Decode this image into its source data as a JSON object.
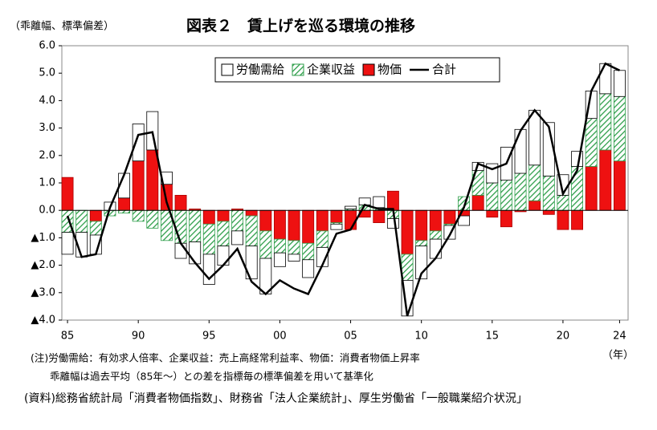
{
  "chart_data": {
    "type": "bar",
    "title": "図表２　賃上げを巡る環境の推移",
    "y_label": "（乖離幅、標準偏差）",
    "x_label": "（年）",
    "notes": [
      "(注)労働需給：有効求人倍率、企業収益：売上高経常利益率、物価：消費者物価上昇率",
      "乖離幅は過去平均（85年～）との差を指標毎の標準偏差を用いて基準化"
    ],
    "source": "(資料)総務省統計局「消費者物価指数」、財務省「法人企業統計」、厚生労働省「一般職業紹介状況」",
    "x": [
      1985,
      1986,
      1987,
      1988,
      1989,
      1990,
      1991,
      1992,
      1993,
      1994,
      1995,
      1996,
      1997,
      1998,
      1999,
      2000,
      2001,
      2002,
      2003,
      2004,
      2005,
      2006,
      2007,
      2008,
      2009,
      2010,
      2011,
      2012,
      2013,
      2014,
      2015,
      2016,
      2017,
      2018,
      2019,
      2020,
      2021,
      2022,
      2023,
      2024
    ],
    "series": [
      {
        "name": "労働需給",
        "color": "#ffffff",
        "type": "bar",
        "values": [
          -0.8,
          -0.9,
          -0.7,
          0.3,
          0.9,
          1.35,
          1.4,
          0.45,
          -0.55,
          -0.8,
          -1.1,
          -0.7,
          -0.5,
          -1.2,
          -1.3,
          -0.5,
          -0.25,
          -0.65,
          -0.7,
          -0.2,
          0.1,
          0.25,
          0.4,
          -0.35,
          -1.3,
          -1.2,
          -0.7,
          -0.5,
          -0.35,
          0.3,
          0.7,
          1.2,
          1.6,
          2.0,
          1.95,
          0.75,
          0.55,
          1.0,
          1.1,
          0.95
        ]
      },
      {
        "name": "企業収益",
        "color": "#2e9e4a",
        "type": "bar",
        "hatch": true,
        "values": [
          -0.8,
          -0.8,
          -0.5,
          -0.2,
          -0.1,
          -0.4,
          -0.65,
          -1.1,
          -1.2,
          -1.15,
          -1.1,
          -0.9,
          -0.75,
          -1.1,
          -1.0,
          -0.5,
          -0.5,
          -0.6,
          -0.6,
          -0.05,
          0.05,
          0.2,
          0.1,
          -0.3,
          -0.95,
          -0.2,
          -0.3,
          -0.05,
          0.5,
          0.9,
          1.0,
          1.1,
          1.35,
          1.3,
          1.25,
          0.55,
          1.6,
          1.75,
          2.05,
          2.35
        ]
      },
      {
        "name": "物価",
        "color": "#ee1111",
        "type": "bar",
        "values": [
          1.2,
          0.0,
          -0.4,
          0.0,
          0.45,
          1.8,
          2.2,
          0.95,
          0.55,
          0.05,
          -0.5,
          -0.4,
          0.05,
          -0.2,
          -0.75,
          -1.05,
          -1.1,
          -1.2,
          -0.75,
          -0.45,
          -0.7,
          -0.25,
          -0.45,
          0.7,
          -1.6,
          -1.1,
          -0.75,
          -0.5,
          -0.2,
          0.55,
          -0.25,
          -0.6,
          -0.05,
          0.35,
          -0.15,
          -0.7,
          -0.7,
          1.6,
          2.2,
          1.8
        ]
      },
      {
        "name": "合計",
        "color": "#000000",
        "type": "line",
        "values": [
          -0.2,
          -1.7,
          -1.6,
          0.1,
          1.3,
          2.75,
          2.85,
          0.3,
          -1.2,
          -1.9,
          -2.5,
          -2.0,
          -1.4,
          -2.6,
          -3.05,
          -2.55,
          -2.85,
          -3.05,
          -2.0,
          -0.85,
          -0.7,
          0.2,
          0.05,
          0.05,
          -3.85,
          -2.3,
          -1.75,
          -0.9,
          0.1,
          1.7,
          1.5,
          1.7,
          2.9,
          3.65,
          3.05,
          0.6,
          1.45,
          4.35,
          5.35,
          5.1
        ]
      }
    ],
    "xlim": [
      1984.6,
      2024.6
    ],
    "xticks": [
      {
        "value": 1985,
        "label": "85"
      },
      {
        "value": 1990,
        "label": "90"
      },
      {
        "value": 1995,
        "label": "95"
      },
      {
        "value": 2000,
        "label": "00"
      },
      {
        "value": 2005,
        "label": "05"
      },
      {
        "value": 2010,
        "label": "10"
      },
      {
        "value": 2015,
        "label": "15"
      },
      {
        "value": 2020,
        "label": "20"
      },
      {
        "value": 2024,
        "label": "24"
      }
    ],
    "ylim": [
      -4,
      6
    ],
    "yticks": [
      {
        "value": 6,
        "label": "6.0"
      },
      {
        "value": 5,
        "label": "5.0"
      },
      {
        "value": 4,
        "label": "4.0"
      },
      {
        "value": 3,
        "label": "3.0"
      },
      {
        "value": 2,
        "label": "2.0"
      },
      {
        "value": 1,
        "label": "1.0"
      },
      {
        "value": 0,
        "label": "0.0"
      },
      {
        "value": -1,
        "label": "▲1.0"
      },
      {
        "value": -2,
        "label": "▲2.0"
      },
      {
        "value": -3,
        "label": "▲3.0"
      },
      {
        "value": -4,
        "label": "▲4.0"
      }
    ],
    "legend": "top"
  }
}
